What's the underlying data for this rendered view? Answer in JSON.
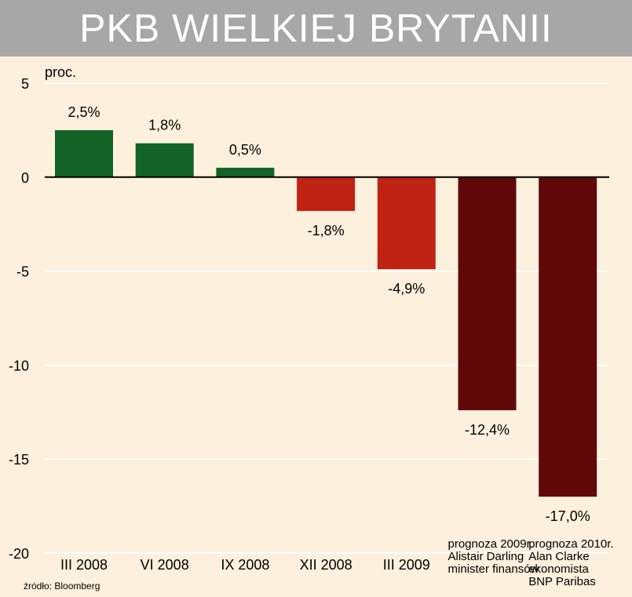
{
  "chart_data": {
    "type": "bar",
    "title": "PKB WIELKIEJ BRYTANII",
    "ylabel": "proc.",
    "ylim": [
      -20,
      5
    ],
    "yticks": [
      5,
      0,
      -5,
      -10,
      -15,
      -20
    ],
    "grid": true,
    "categories": [
      [
        "III 2008"
      ],
      [
        "VI 2008"
      ],
      [
        "IX 2008"
      ],
      [
        "XII 2008"
      ],
      [
        "III 2009"
      ],
      [
        "prognoza 2009r.",
        "Alistair Darling",
        "minister finansów"
      ],
      [
        "prognoza 2010r.",
        "Alan Clarke",
        "ekonomista",
        "BNP Paribas"
      ]
    ],
    "values": [
      2.5,
      1.8,
      0.5,
      -1.8,
      -4.9,
      -12.4,
      -17.0
    ],
    "value_labels": [
      "2,5%",
      "1,8%",
      "0,5%",
      "-1,8%",
      "-4,9%",
      "-12,4%",
      "-17,0%"
    ],
    "colors": [
      "#136326",
      "#136326",
      "#136326",
      "#c02214",
      "#c02214",
      "#600808",
      "#600808"
    ]
  },
  "source": "źródło: Bloomberg"
}
